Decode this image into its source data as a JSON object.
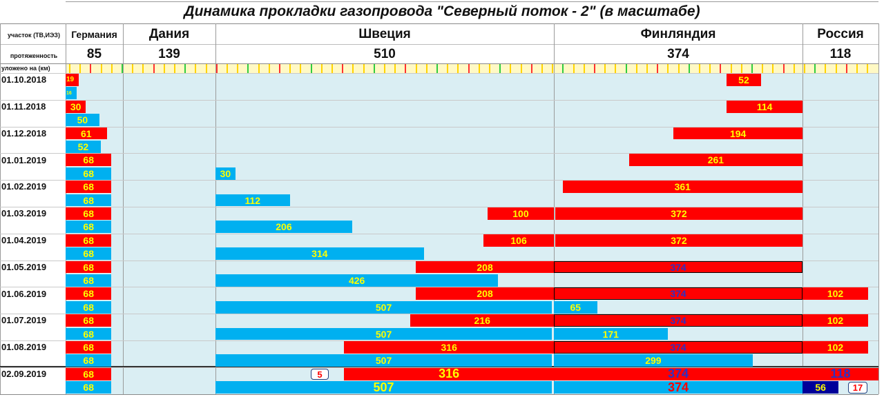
{
  "title": "Динамика прокладки газопровода \"Северный поток - 2\"  (в масштабе)",
  "header": {
    "row1_label": "участок (ТВ,ИЭЗ)",
    "row2_label": "протяженность",
    "row3_label": "уложено на (км)"
  },
  "colors": {
    "red": "#ff0000",
    "blue": "#00b0f0",
    "navy": "#000099",
    "background": "#daeef3",
    "label": "#ffff00"
  },
  "chart_data": {
    "type": "bar",
    "title": "Динамика прокладки газопровода \"Северный поток - 2\"  (в масштабе)",
    "orientation": "horizontal-stacked-by-section",
    "sections": [
      {
        "name": "Германия",
        "length": 85
      },
      {
        "name": "Дания",
        "length": 139
      },
      {
        "name": "Швеция",
        "length": 510
      },
      {
        "name": "Финляндия",
        "length": 374
      },
      {
        "name": "Россия",
        "length": 118
      }
    ],
    "rows": [
      {
        "date": "01.10.2018",
        "bars": [
          {
            "section": 0,
            "value": 19,
            "color": "red",
            "align": "left"
          },
          {
            "section": 3,
            "value": 52,
            "color": "red",
            "align": "right",
            "offset": 60
          }
        ]
      },
      {
        "date": "",
        "bars": [
          {
            "section": 0,
            "value": 16,
            "color": "blue",
            "align": "left"
          }
        ]
      },
      {
        "date": "01.11.2018",
        "bars": [
          {
            "section": 0,
            "value": 30,
            "color": "red",
            "align": "left"
          },
          {
            "section": 3,
            "value": 114,
            "color": "red",
            "align": "right"
          }
        ]
      },
      {
        "date": "",
        "bars": [
          {
            "section": 0,
            "value": 50,
            "color": "blue",
            "align": "left"
          }
        ]
      },
      {
        "date": "01.12.2018",
        "bars": [
          {
            "section": 0,
            "value": 61,
            "color": "red",
            "align": "left"
          },
          {
            "section": 3,
            "value": 194,
            "color": "red",
            "align": "right"
          }
        ]
      },
      {
        "date": "",
        "bars": [
          {
            "section": 0,
            "value": 52,
            "color": "blue",
            "align": "left"
          }
        ]
      },
      {
        "date": "01.01.2019",
        "bars": [
          {
            "section": 0,
            "value": 68,
            "color": "red",
            "align": "left"
          },
          {
            "section": 3,
            "value": 261,
            "color": "red",
            "align": "right"
          }
        ]
      },
      {
        "date": "",
        "bars": [
          {
            "section": 0,
            "value": 68,
            "color": "blue",
            "align": "left"
          },
          {
            "section": 2,
            "value": 30,
            "color": "blue",
            "align": "left"
          }
        ]
      },
      {
        "date": "01.02.2019",
        "bars": [
          {
            "section": 0,
            "value": 68,
            "color": "red",
            "align": "left"
          },
          {
            "section": 3,
            "value": 361,
            "color": "red",
            "align": "right"
          }
        ]
      },
      {
        "date": "",
        "bars": [
          {
            "section": 0,
            "value": 68,
            "color": "blue",
            "align": "left"
          },
          {
            "section": 2,
            "value": 112,
            "color": "blue",
            "align": "left"
          }
        ]
      },
      {
        "date": "01.03.2019",
        "bars": [
          {
            "section": 0,
            "value": 68,
            "color": "red",
            "align": "left"
          },
          {
            "section": 2,
            "value": 100,
            "color": "red",
            "align": "right"
          },
          {
            "section": 3,
            "value": 372,
            "color": "red",
            "align": "right"
          }
        ]
      },
      {
        "date": "",
        "bars": [
          {
            "section": 0,
            "value": 68,
            "color": "blue",
            "align": "left"
          },
          {
            "section": 2,
            "value": 206,
            "color": "blue",
            "align": "left"
          }
        ]
      },
      {
        "date": "01.04.2019",
        "bars": [
          {
            "section": 0,
            "value": 68,
            "color": "red",
            "align": "left"
          },
          {
            "section": 2,
            "value": 106,
            "color": "red",
            "align": "right"
          },
          {
            "section": 3,
            "value": 372,
            "color": "red",
            "align": "right"
          }
        ]
      },
      {
        "date": "",
        "bars": [
          {
            "section": 0,
            "value": 68,
            "color": "blue",
            "align": "left"
          },
          {
            "section": 2,
            "value": 314,
            "color": "blue",
            "align": "left"
          }
        ]
      },
      {
        "date": "01.05.2019",
        "bars": [
          {
            "section": 0,
            "value": 68,
            "color": "red",
            "align": "left"
          },
          {
            "section": 2,
            "value": 208,
            "color": "red",
            "align": "right"
          },
          {
            "section": 3,
            "value": 374,
            "color": "red",
            "align": "right",
            "framed": true,
            "label_color": "#3030c0"
          }
        ]
      },
      {
        "date": "",
        "bars": [
          {
            "section": 0,
            "value": 68,
            "color": "blue",
            "align": "left"
          },
          {
            "section": 2,
            "value": 426,
            "color": "blue",
            "align": "left"
          }
        ]
      },
      {
        "date": "01.06.2019",
        "bars": [
          {
            "section": 0,
            "value": 68,
            "color": "red",
            "align": "left"
          },
          {
            "section": 2,
            "value": 208,
            "color": "red",
            "align": "right"
          },
          {
            "section": 3,
            "value": 374,
            "color": "red",
            "align": "right",
            "framed": true,
            "label_color": "#3030c0"
          },
          {
            "section": 4,
            "value": 102,
            "color": "red",
            "align": "left"
          }
        ]
      },
      {
        "date": "",
        "bars": [
          {
            "section": 0,
            "value": 68,
            "color": "blue",
            "align": "left"
          },
          {
            "section": 2,
            "value": 507,
            "color": "blue",
            "align": "left"
          },
          {
            "section": 3,
            "value": 65,
            "color": "blue",
            "align": "left"
          }
        ]
      },
      {
        "date": "01.07.2019",
        "bars": [
          {
            "section": 0,
            "value": 68,
            "color": "red",
            "align": "left"
          },
          {
            "section": 2,
            "value": 216,
            "color": "red",
            "align": "right"
          },
          {
            "section": 3,
            "value": 374,
            "color": "red",
            "align": "right",
            "framed": true,
            "label_color": "#3030c0"
          },
          {
            "section": 4,
            "value": 102,
            "color": "red",
            "align": "left"
          }
        ]
      },
      {
        "date": "",
        "bars": [
          {
            "section": 0,
            "value": 68,
            "color": "blue",
            "align": "left"
          },
          {
            "section": 2,
            "value": 507,
            "color": "blue",
            "align": "left"
          },
          {
            "section": 3,
            "value": 171,
            "color": "blue",
            "align": "left"
          }
        ]
      },
      {
        "date": "01.08.2019",
        "bars": [
          {
            "section": 0,
            "value": 68,
            "color": "red",
            "align": "left"
          },
          {
            "section": 2,
            "value": 316,
            "color": "red",
            "align": "right"
          },
          {
            "section": 3,
            "value": 374,
            "color": "red",
            "align": "right",
            "framed": true,
            "label_color": "#3030c0"
          },
          {
            "section": 4,
            "value": 102,
            "color": "red",
            "align": "left"
          }
        ]
      },
      {
        "date": "",
        "bars": [
          {
            "section": 0,
            "value": 68,
            "color": "blue",
            "align": "left"
          },
          {
            "section": 2,
            "value": 507,
            "color": "blue",
            "align": "left"
          },
          {
            "section": 3,
            "value": 299,
            "color": "blue",
            "align": "left"
          }
        ]
      },
      {
        "date": "02.09.2019",
        "bars": [
          {
            "section": 0,
            "value": 68,
            "color": "red",
            "align": "left"
          },
          {
            "section": 2,
            "value": 316,
            "color": "red",
            "align": "right",
            "big": true
          },
          {
            "section": 3,
            "value": 374,
            "color": "red",
            "align": "right",
            "big": true,
            "label_color": "#3030c0"
          },
          {
            "section": 4,
            "value": 118,
            "color": "red",
            "align": "left",
            "big": true,
            "label_color": "#3030c0"
          }
        ]
      },
      {
        "date": "",
        "bars": [
          {
            "section": 0,
            "value": 68,
            "color": "blue",
            "align": "left"
          },
          {
            "section": 2,
            "value": 507,
            "color": "blue",
            "align": "left",
            "big": true
          },
          {
            "section": 3,
            "value": 374,
            "color": "blue",
            "align": "left",
            "big": true,
            "label_color": "#ff0000"
          },
          {
            "section": 4,
            "value": 56,
            "color": "navy",
            "align": "left"
          }
        ]
      }
    ],
    "callouts": [
      {
        "row": 22,
        "section": 2,
        "text": "5"
      },
      {
        "row": 23,
        "section": 4,
        "text": "17"
      }
    ]
  }
}
